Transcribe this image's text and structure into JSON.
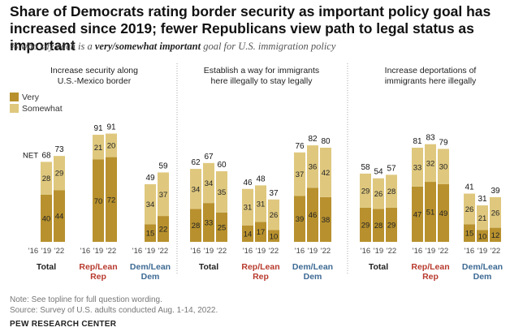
{
  "header": {
    "title": "Share of Democrats rating border security as important policy goal has increased since 2019; fewer Republicans view path to legal status as important",
    "subtitle_before": "% who say each is a ",
    "subtitle_bold": "very/somewhat important",
    "subtitle_after": " goal for U.S. immigration policy"
  },
  "footer": {
    "note": "Note: See topline for full question wording.",
    "source": "Source: Survey of U.S. adults conducted Aug. 1-14, 2022.",
    "org": "PEW RESEARCH CENTER"
  },
  "colors": {
    "very": "#b8912e",
    "somewhat": "#dfc87e",
    "rep": "#b83a2e",
    "dem": "#3d6a94",
    "total": "#222222"
  },
  "chart_data": {
    "type": "bar",
    "stacked": true,
    "years": [
      "'16",
      "'19",
      "'22"
    ],
    "groups": [
      "Total",
      "Rep/Lean Rep",
      "Dem/Lean Dem"
    ],
    "series": [
      {
        "name": "Very",
        "color": "#b8912e"
      },
      {
        "name": "Somewhat",
        "color": "#dfc87e"
      }
    ],
    "net_label": "NET",
    "legend_position": "left",
    "panels": [
      {
        "title": "Increase security along U.S.-Mexico border",
        "groups": [
          {
            "name": "Total",
            "years": [
              "'19",
              "'22"
            ],
            "very": [
              40,
              44
            ],
            "somewhat": [
              28,
              29
            ],
            "net": [
              68,
              73
            ]
          },
          {
            "name": "Rep/Lean Rep",
            "years": [
              "'19",
              "'22"
            ],
            "very": [
              70,
              72
            ],
            "somewhat": [
              21,
              20
            ],
            "net": [
              91,
              91
            ]
          },
          {
            "name": "Dem/Lean Dem",
            "years": [
              "'19",
              "'22"
            ],
            "very": [
              15,
              22
            ],
            "somewhat": [
              34,
              37
            ],
            "net": [
              49,
              59
            ]
          }
        ]
      },
      {
        "title": "Establish a way for immigrants here illegally to stay legally",
        "groups": [
          {
            "name": "Total",
            "years": [
              "'16",
              "'19",
              "'22"
            ],
            "very": [
              28,
              33,
              25
            ],
            "somewhat": [
              34,
              34,
              35
            ],
            "net": [
              62,
              67,
              60
            ]
          },
          {
            "name": "Rep/Lean Rep",
            "years": [
              "'16",
              "'19",
              "'22"
            ],
            "very": [
              14,
              17,
              10
            ],
            "somewhat": [
              31,
              31,
              26
            ],
            "net": [
              46,
              48,
              37
            ]
          },
          {
            "name": "Dem/Lean Dem",
            "years": [
              "'16",
              "'19",
              "'22"
            ],
            "very": [
              39,
              46,
              38
            ],
            "somewhat": [
              37,
              36,
              42
            ],
            "net": [
              76,
              82,
              80
            ]
          }
        ]
      },
      {
        "title": "Increase deportations of immigrants here illegally",
        "groups": [
          {
            "name": "Total",
            "years": [
              "'16",
              "'19",
              "'22"
            ],
            "very": [
              29,
              28,
              29
            ],
            "somewhat": [
              29,
              26,
              28
            ],
            "net": [
              58,
              54,
              57
            ]
          },
          {
            "name": "Rep/Lean Rep",
            "years": [
              "'16",
              "'19",
              "'22"
            ],
            "very": [
              47,
              51,
              49
            ],
            "somewhat": [
              33,
              32,
              30
            ],
            "net": [
              81,
              83,
              79
            ]
          },
          {
            "name": "Dem/Lean Dem",
            "years": [
              "'16",
              "'19",
              "'22"
            ],
            "very": [
              15,
              10,
              12
            ],
            "somewhat": [
              26,
              21,
              26
            ],
            "net": [
              41,
              31,
              39
            ]
          }
        ]
      }
    ]
  }
}
